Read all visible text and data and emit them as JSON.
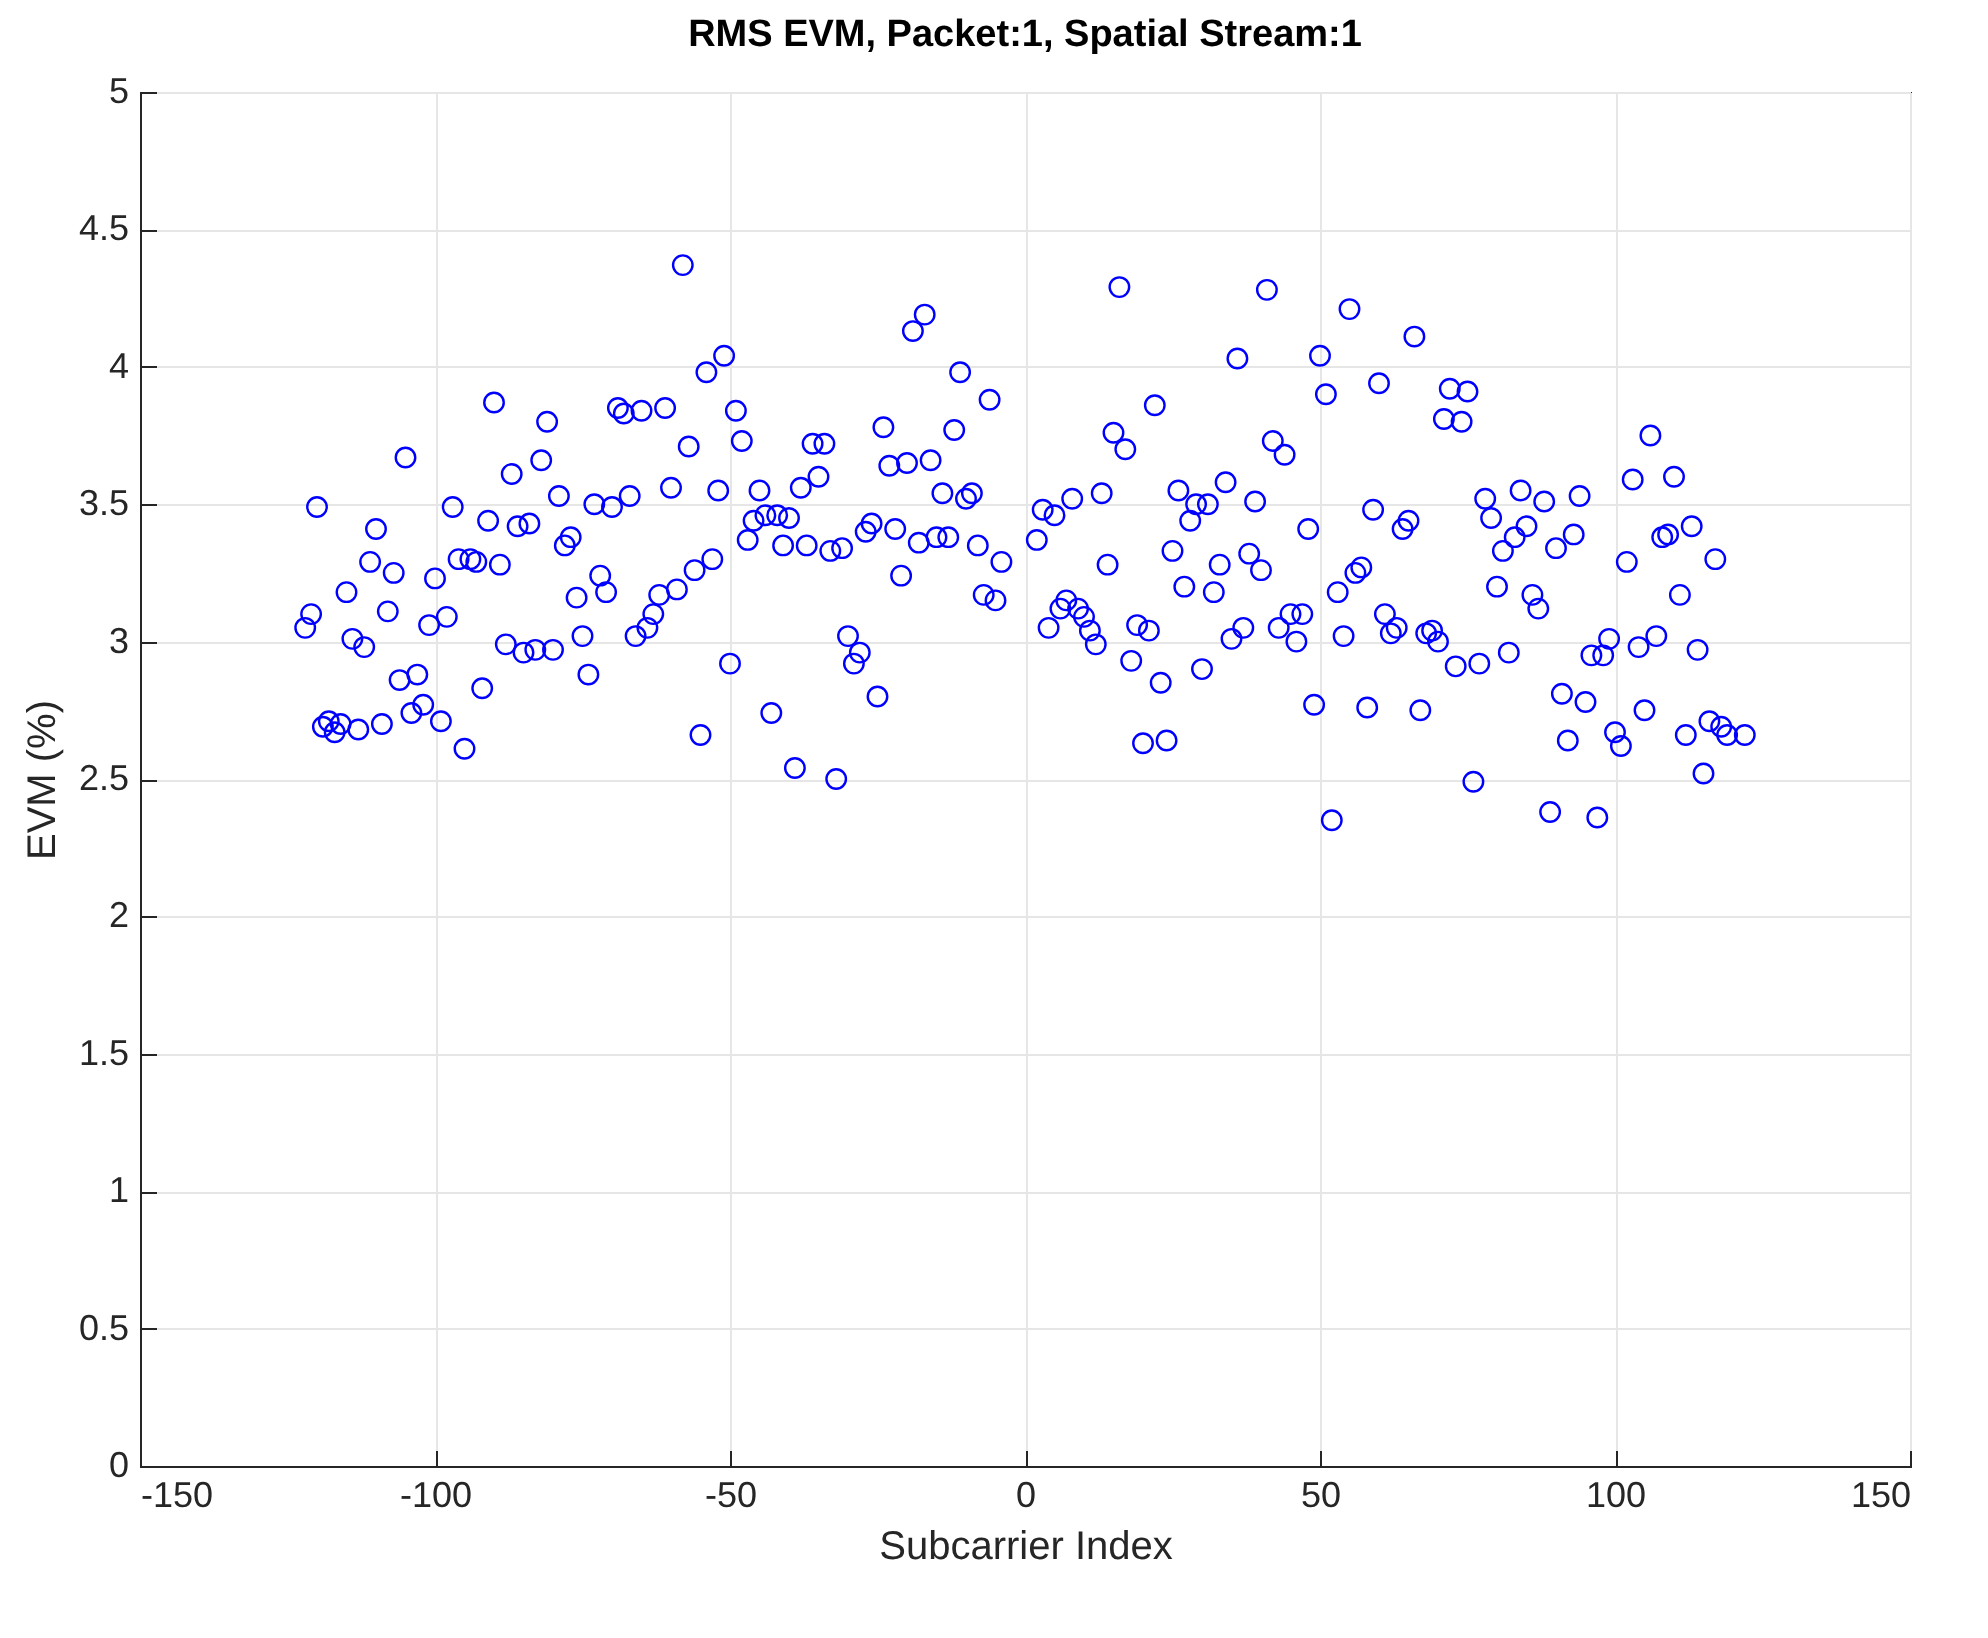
{
  "chart_data": {
    "type": "scatter",
    "title": "RMS EVM, Packet:1, Spatial Stream:1",
    "xlabel": "Subcarrier Index",
    "ylabel": "EVM (%)",
    "xlim": [
      -150,
      150
    ],
    "ylim": [
      0,
      5
    ],
    "xticks": [
      -150,
      -100,
      -50,
      0,
      50,
      100,
      150
    ],
    "yticks": [
      0,
      {
        "value": 0.5,
        "label": "0.5"
      },
      1,
      {
        "value": 1.5,
        "label": "1.5"
      },
      2,
      {
        "value": 2.5,
        "label": "2.5"
      },
      3,
      {
        "value": 3.5,
        "label": "3.5"
      },
      4,
      {
        "value": 4.5,
        "label": "4.5"
      },
      5
    ],
    "grid": true,
    "marker": "circle",
    "legend": false,
    "series": [
      {
        "color": "#0000ff",
        "x": [
          -122,
          -121,
          -120,
          -119,
          -118,
          -117,
          -116,
          -115,
          -114,
          -113,
          -112,
          -111,
          -110,
          -109,
          -108,
          -107,
          -106,
          -105,
          -104,
          -103,
          -102,
          -101,
          -100,
          -99,
          -98,
          -97,
          -96,
          -95,
          -94,
          -93,
          -92,
          -91,
          -90,
          -89,
          -88,
          -87,
          -86,
          -85,
          -84,
          -83,
          -82,
          -81,
          -80,
          -79,
          -78,
          -77,
          -76,
          -75,
          -74,
          -73,
          -72,
          -71,
          -70,
          -69,
          -68,
          -67,
          -66,
          -65,
          -64,
          -63,
          -62,
          -61,
          -60,
          -59,
          -58,
          -57,
          -56,
          -55,
          -54,
          -53,
          -52,
          -51,
          -50,
          -49,
          -48,
          -47,
          -46,
          -45,
          -44,
          -43,
          -42,
          -41,
          -40,
          -39,
          -38,
          -37,
          -36,
          -35,
          -34,
          -33,
          -32,
          -31,
          -30,
          -29,
          -28,
          -27,
          -26,
          -25,
          -24,
          -23,
          -22,
          -21,
          -20,
          -19,
          -18,
          -17,
          -16,
          -15,
          -14,
          -13,
          -12,
          -11,
          -10,
          -9,
          -8,
          -7,
          -6,
          -5,
          -4,
          2,
          3,
          4,
          5,
          6,
          7,
          8,
          9,
          10,
          11,
          12,
          13,
          14,
          15,
          16,
          17,
          18,
          19,
          20,
          21,
          22,
          23,
          24,
          25,
          26,
          27,
          28,
          29,
          30,
          31,
          32,
          33,
          34,
          35,
          36,
          37,
          38,
          39,
          40,
          41,
          42,
          43,
          44,
          45,
          46,
          47,
          48,
          49,
          50,
          51,
          52,
          53,
          54,
          55,
          56,
          57,
          58,
          59,
          60,
          61,
          62,
          63,
          64,
          65,
          66,
          67,
          68,
          69,
          70,
          71,
          72,
          73,
          74,
          75,
          76,
          77,
          78,
          79,
          80,
          81,
          82,
          83,
          84,
          85,
          86,
          87,
          88,
          89,
          90,
          91,
          92,
          93,
          94,
          95,
          96,
          97,
          98,
          99,
          100,
          101,
          102,
          103,
          104,
          105,
          106,
          107,
          108,
          109,
          110,
          111,
          112,
          113,
          114,
          115,
          116,
          117,
          118,
          119,
          122
        ],
        "values": [
          3.05,
          3.1,
          3.49,
          2.69,
          2.71,
          2.67,
          2.7,
          3.18,
          3.01,
          2.68,
          2.98,
          3.29,
          3.41,
          2.7,
          3.11,
          3.25,
          2.86,
          3.67,
          2.74,
          2.88,
          2.77,
          3.06,
          3.23,
          2.71,
          3.09,
          3.49,
          3.3,
          2.61,
          3.3,
          3.29,
          2.83,
          3.44,
          3.87,
          3.28,
          2.99,
          3.61,
          3.42,
          2.96,
          3.43,
          2.97,
          3.66,
          3.8,
          2.97,
          3.53,
          3.35,
          3.38,
          3.16,
          3.02,
          2.88,
          3.5,
          3.24,
          3.18,
          3.49,
          3.85,
          3.83,
          3.53,
          3.02,
          3.84,
          3.05,
          3.1,
          3.17,
          3.85,
          3.56,
          3.19,
          4.37,
          3.71,
          3.26,
          2.66,
          3.98,
          3.3,
          3.55,
          4.04,
          2.92,
          3.84,
          3.73,
          3.37,
          3.44,
          3.55,
          3.46,
          2.74,
          3.46,
          3.35,
          3.45,
          2.54,
          3.56,
          3.35,
          3.72,
          3.6,
          3.72,
          3.33,
          2.5,
          3.34,
          3.02,
          2.92,
          2.96,
          3.4,
          3.43,
          2.8,
          3.78,
          3.64,
          3.41,
          3.24,
          3.65,
          4.13,
          3.36,
          4.19,
          3.66,
          3.38,
          3.54,
          3.38,
          3.77,
          3.98,
          3.52,
          3.54,
          3.35,
          3.17,
          3.88,
          3.15,
          3.29,
          3.37,
          3.48,
          3.05,
          3.46,
          3.12,
          3.15,
          3.52,
          3.12,
          3.09,
          3.04,
          2.99,
          3.54,
          3.28,
          3.76,
          4.29,
          3.7,
          2.93,
          3.06,
          2.63,
          3.04,
          3.86,
          2.85,
          2.64,
          3.33,
          3.55,
          3.2,
          3.44,
          3.5,
          2.9,
          3.5,
          3.18,
          3.28,
          3.58,
          3.01,
          4.03,
          3.05,
          3.32,
          3.51,
          3.26,
          4.28,
          3.73,
          3.05,
          3.68,
          3.1,
          3.0,
          3.1,
          3.41,
          2.77,
          4.04,
          3.9,
          2.35,
          3.18,
          3.02,
          4.21,
          3.25,
          3.27,
          2.76,
          3.48,
          3.94,
          3.1,
          3.03,
          3.05,
          3.41,
          3.44,
          4.11,
          2.75,
          3.03,
          3.04,
          3.0,
          3.81,
          3.92,
          2.91,
          3.8,
          3.91,
          2.49,
          2.92,
          3.52,
          3.45,
          3.2,
          3.33,
          2.96,
          3.38,
          3.55,
          3.42,
          3.17,
          3.12,
          3.51,
          2.38,
          3.34,
          2.81,
          2.64,
          3.39,
          3.53,
          2.78,
          2.95,
          2.36,
          2.95,
          3.01,
          2.67,
          2.62,
          3.29,
          3.59,
          2.98,
          2.75,
          3.75,
          3.02,
          3.38,
          3.39,
          3.6,
          3.17,
          2.66,
          3.42,
          2.97,
          2.52,
          2.71,
          3.3,
          2.69,
          2.66,
          2.66
        ]
      }
    ]
  }
}
